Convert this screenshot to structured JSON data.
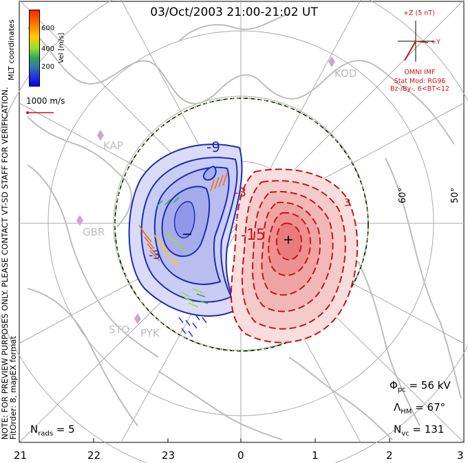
{
  "title": "03/Oct/2003 21:00-21:02 UT",
  "coordinates_label": "MLT coordinates",
  "colorbar": {
    "unit_label": "Vel [m/s]",
    "ticks": [
      "600",
      "400",
      "200"
    ],
    "colors": [
      "#ff2200",
      "#ff7700",
      "#ffcc00",
      "#99dd33",
      "#33aa55",
      "#3377aa",
      "#2233dd",
      "#0000ee"
    ]
  },
  "velocity_scale_label": "1000 m/s",
  "watermark_note": "NOTE: FOR PREVIEW PURPOSES ONLY. PLEASE CONTACT VT-SD STAFF FOR VERIFICATION.",
  "fit_note": "FitOrder: 8, mapEX format",
  "imf": {
    "z_label": "+Z (5 nT)",
    "y_label": "+Y",
    "source": "OMNI IMF",
    "stat_mod": "Stat Mod: RG96",
    "bin": "Bz-/By-, 6<BT<12"
  },
  "stations": [
    "KOD",
    "KAP",
    "GBR",
    "STO",
    "PYK"
  ],
  "latitude_labels": [
    "60°",
    "50°"
  ],
  "contour_labels": [
    "-9",
    "-3",
    "-",
    "-3",
    "3",
    "-15",
    "+"
  ],
  "stats": {
    "phi_pc": "56 kV",
    "lambda_hm": "67°",
    "n_vc": "131",
    "n_rads": "5"
  },
  "mlt_ticks": [
    "21",
    "22",
    "23",
    "0",
    "1",
    "2",
    "3"
  ],
  "colors": {
    "negative_contour": "#1a2bb8",
    "positive_contour": "#cc1111",
    "negative_fill": "#b9bdf0",
    "positive_fill": "#f0a8a8",
    "land": "#bdbdbd",
    "grid": "#aaaaaa",
    "boundary": "#55bb22"
  }
}
